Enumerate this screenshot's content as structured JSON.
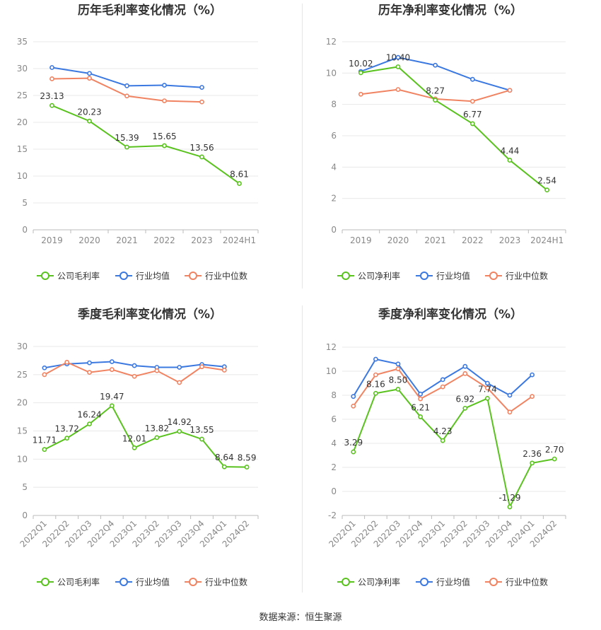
{
  "source_text": "数据来源：恒生聚源",
  "colors": {
    "company": "#5ac21e",
    "industry_avg": "#3b78e0",
    "industry_median": "#f08462",
    "grid": "#e8e8e8",
    "axis": "#999999",
    "tick_text": "#888888",
    "title_text": "#333333"
  },
  "chart_data": [
    {
      "type": "line",
      "title": "历年毛利率变化情况（%）",
      "categories": [
        "2019",
        "2020",
        "2021",
        "2022",
        "2023",
        "2024H1"
      ],
      "ylim": [
        0,
        35
      ],
      "yticks": [
        0,
        5,
        10,
        15,
        20,
        25,
        30,
        35
      ],
      "series": [
        {
          "name": "公司毛利率",
          "values": [
            23.13,
            20.23,
            15.39,
            15.65,
            13.56,
            8.61
          ],
          "labels": [
            "23.13",
            "20.23",
            "15.39",
            "15.65",
            "13.56",
            "8.61"
          ]
        },
        {
          "name": "行业均值",
          "values": [
            30.2,
            29.1,
            26.8,
            26.9,
            26.5,
            null
          ]
        },
        {
          "name": "行业中位数",
          "values": [
            28.1,
            28.2,
            24.9,
            24.0,
            23.8,
            null
          ]
        }
      ]
    },
    {
      "type": "line",
      "title": "历年净利率变化情况（%）",
      "categories": [
        "2019",
        "2020",
        "2021",
        "2022",
        "2023",
        "2024H1"
      ],
      "ylim": [
        0,
        12
      ],
      "yticks": [
        0,
        2,
        4,
        6,
        8,
        10,
        12
      ],
      "series": [
        {
          "name": "公司净利率",
          "values": [
            10.02,
            10.4,
            8.27,
            6.77,
            4.44,
            2.54
          ],
          "labels": [
            "10.02",
            "10.40",
            "8.27",
            "6.77",
            "4.44",
            "2.54"
          ]
        },
        {
          "name": "行业均值",
          "values": [
            10.1,
            11.0,
            10.5,
            9.6,
            8.9,
            null
          ]
        },
        {
          "name": "行业中位数",
          "values": [
            8.65,
            8.95,
            8.35,
            8.2,
            8.9,
            null
          ]
        }
      ]
    },
    {
      "type": "line",
      "title": "季度毛利率变化情况（%）",
      "categories": [
        "2022Q1",
        "2022Q2",
        "2022Q3",
        "2022Q4",
        "2023Q1",
        "2023Q2",
        "2023Q3",
        "2023Q4",
        "2024Q1",
        "2024Q2"
      ],
      "ylim": [
        0,
        30
      ],
      "yticks": [
        0,
        5,
        10,
        15,
        20,
        25,
        30
      ],
      "series": [
        {
          "name": "公司毛利率",
          "values": [
            11.71,
            13.72,
            16.24,
            19.47,
            12.01,
            13.82,
            14.92,
            13.55,
            8.64,
            8.59
          ],
          "labels": [
            "11.71",
            "13.72",
            "16.24",
            "19.47",
            "12.01",
            "13.82",
            "14.92",
            "13.55",
            "8.64",
            "8.59"
          ]
        },
        {
          "name": "行业均值",
          "values": [
            26.2,
            26.9,
            27.1,
            27.3,
            26.6,
            26.3,
            26.3,
            26.8,
            26.4,
            null
          ]
        },
        {
          "name": "行业中位数",
          "values": [
            25.0,
            27.2,
            25.4,
            25.9,
            24.7,
            25.7,
            23.6,
            26.4,
            25.8,
            null
          ]
        }
      ]
    },
    {
      "type": "line",
      "title": "季度净利率变化情况（%）",
      "categories": [
        "2022Q1",
        "2022Q2",
        "2022Q3",
        "2022Q4",
        "2023Q1",
        "2023Q2",
        "2023Q3",
        "2023Q4",
        "2024Q1",
        "2024Q2"
      ],
      "ylim": [
        -2,
        12
      ],
      "yticks": [
        -2,
        0,
        2,
        4,
        6,
        8,
        10,
        12
      ],
      "series": [
        {
          "name": "公司净利率",
          "values": [
            3.29,
            8.16,
            8.5,
            6.21,
            4.23,
            6.92,
            7.74,
            -1.29,
            2.36,
            2.7
          ],
          "labels": [
            "3.29",
            "8.16",
            "8.50",
            "6.21",
            "4.23",
            "6.92",
            "7.74",
            "-1.29",
            "2.36",
            "2.70"
          ]
        },
        {
          "name": "行业均值",
          "values": [
            7.9,
            11.0,
            10.6,
            8.1,
            9.3,
            10.4,
            9.0,
            8.0,
            9.7,
            null
          ]
        },
        {
          "name": "行业中位数",
          "values": [
            7.1,
            9.7,
            10.2,
            7.7,
            8.7,
            9.8,
            8.6,
            6.6,
            7.9,
            null
          ]
        }
      ]
    }
  ]
}
